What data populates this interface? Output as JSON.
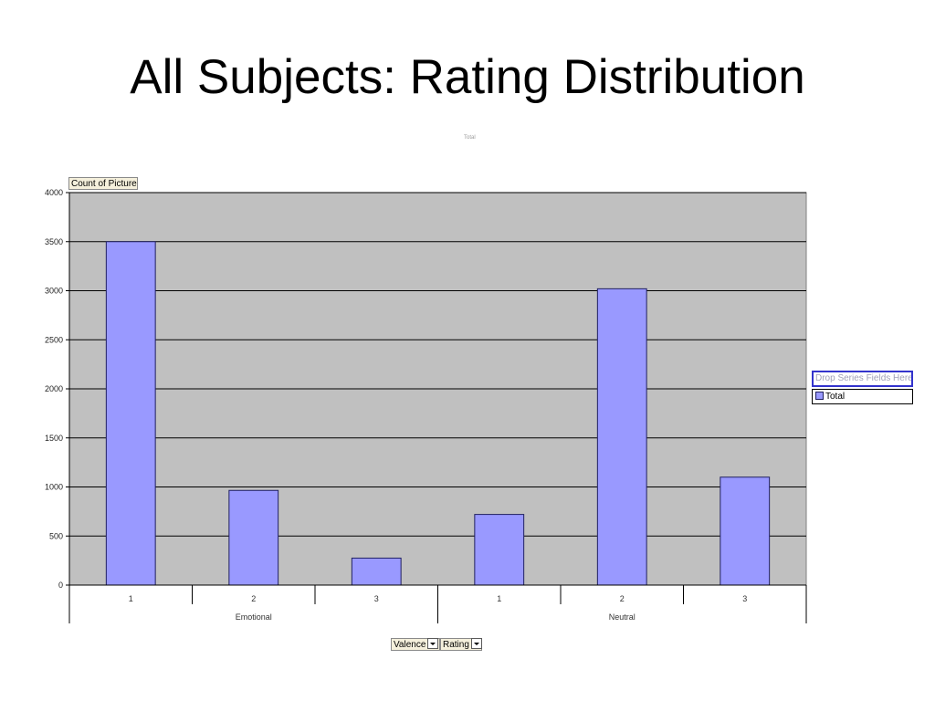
{
  "slide": {
    "title": "All Subjects: Rating Distribution",
    "faint_label": "Total"
  },
  "chart_data": {
    "type": "bar",
    "y_field": "Count of Picture",
    "groups": [
      {
        "name": "Emotional",
        "categories": [
          "1",
          "2",
          "3"
        ],
        "values": [
          3500,
          965,
          275
        ]
      },
      {
        "name": "Neutral",
        "categories": [
          "1",
          "2",
          "3"
        ],
        "values": [
          720,
          3020,
          1100
        ]
      }
    ],
    "series": [
      {
        "name": "Total",
        "color": "#9999ff"
      }
    ],
    "ylim": [
      0,
      4000
    ],
    "yticks": [
      0,
      500,
      1000,
      1500,
      2000,
      2500,
      3000,
      3500,
      4000
    ],
    "grid": true,
    "plot_background": "#c0c0c0",
    "legend_position": "right"
  },
  "pivot": {
    "data_field": "Count of Picture",
    "drop_series_text": "Drop Series Fields Here",
    "legend_entry": "Total",
    "category_fields": [
      "Valence",
      "Rating"
    ]
  }
}
